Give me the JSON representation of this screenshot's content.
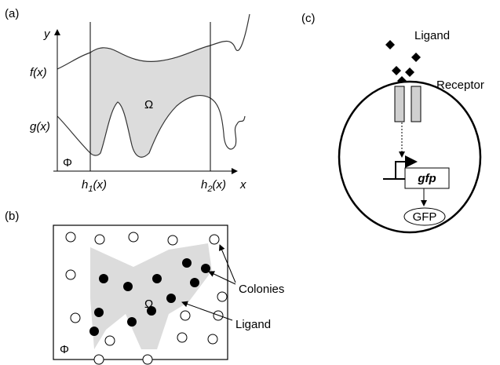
{
  "panel_a": {
    "label": "(a)",
    "y_axis": "y",
    "x_axis": "x",
    "f_label": "f(x)",
    "g_label": "g(x)",
    "omega": "Ω",
    "phi": "Φ",
    "h1_base": "h",
    "h1_sub": "1",
    "h1_rest": "(x)",
    "h2_base": "h",
    "h2_sub": "2",
    "h2_rest": "(x)"
  },
  "panel_b": {
    "label": "(b)",
    "omega": "Ω",
    "phi": "Φ",
    "colonies": "Colonies",
    "ligand": "Ligand"
  },
  "panel_c": {
    "label": "(c)",
    "ligand": "Ligand",
    "receptor": "Receptor",
    "gene": "gfp",
    "protein": "GFP"
  }
}
